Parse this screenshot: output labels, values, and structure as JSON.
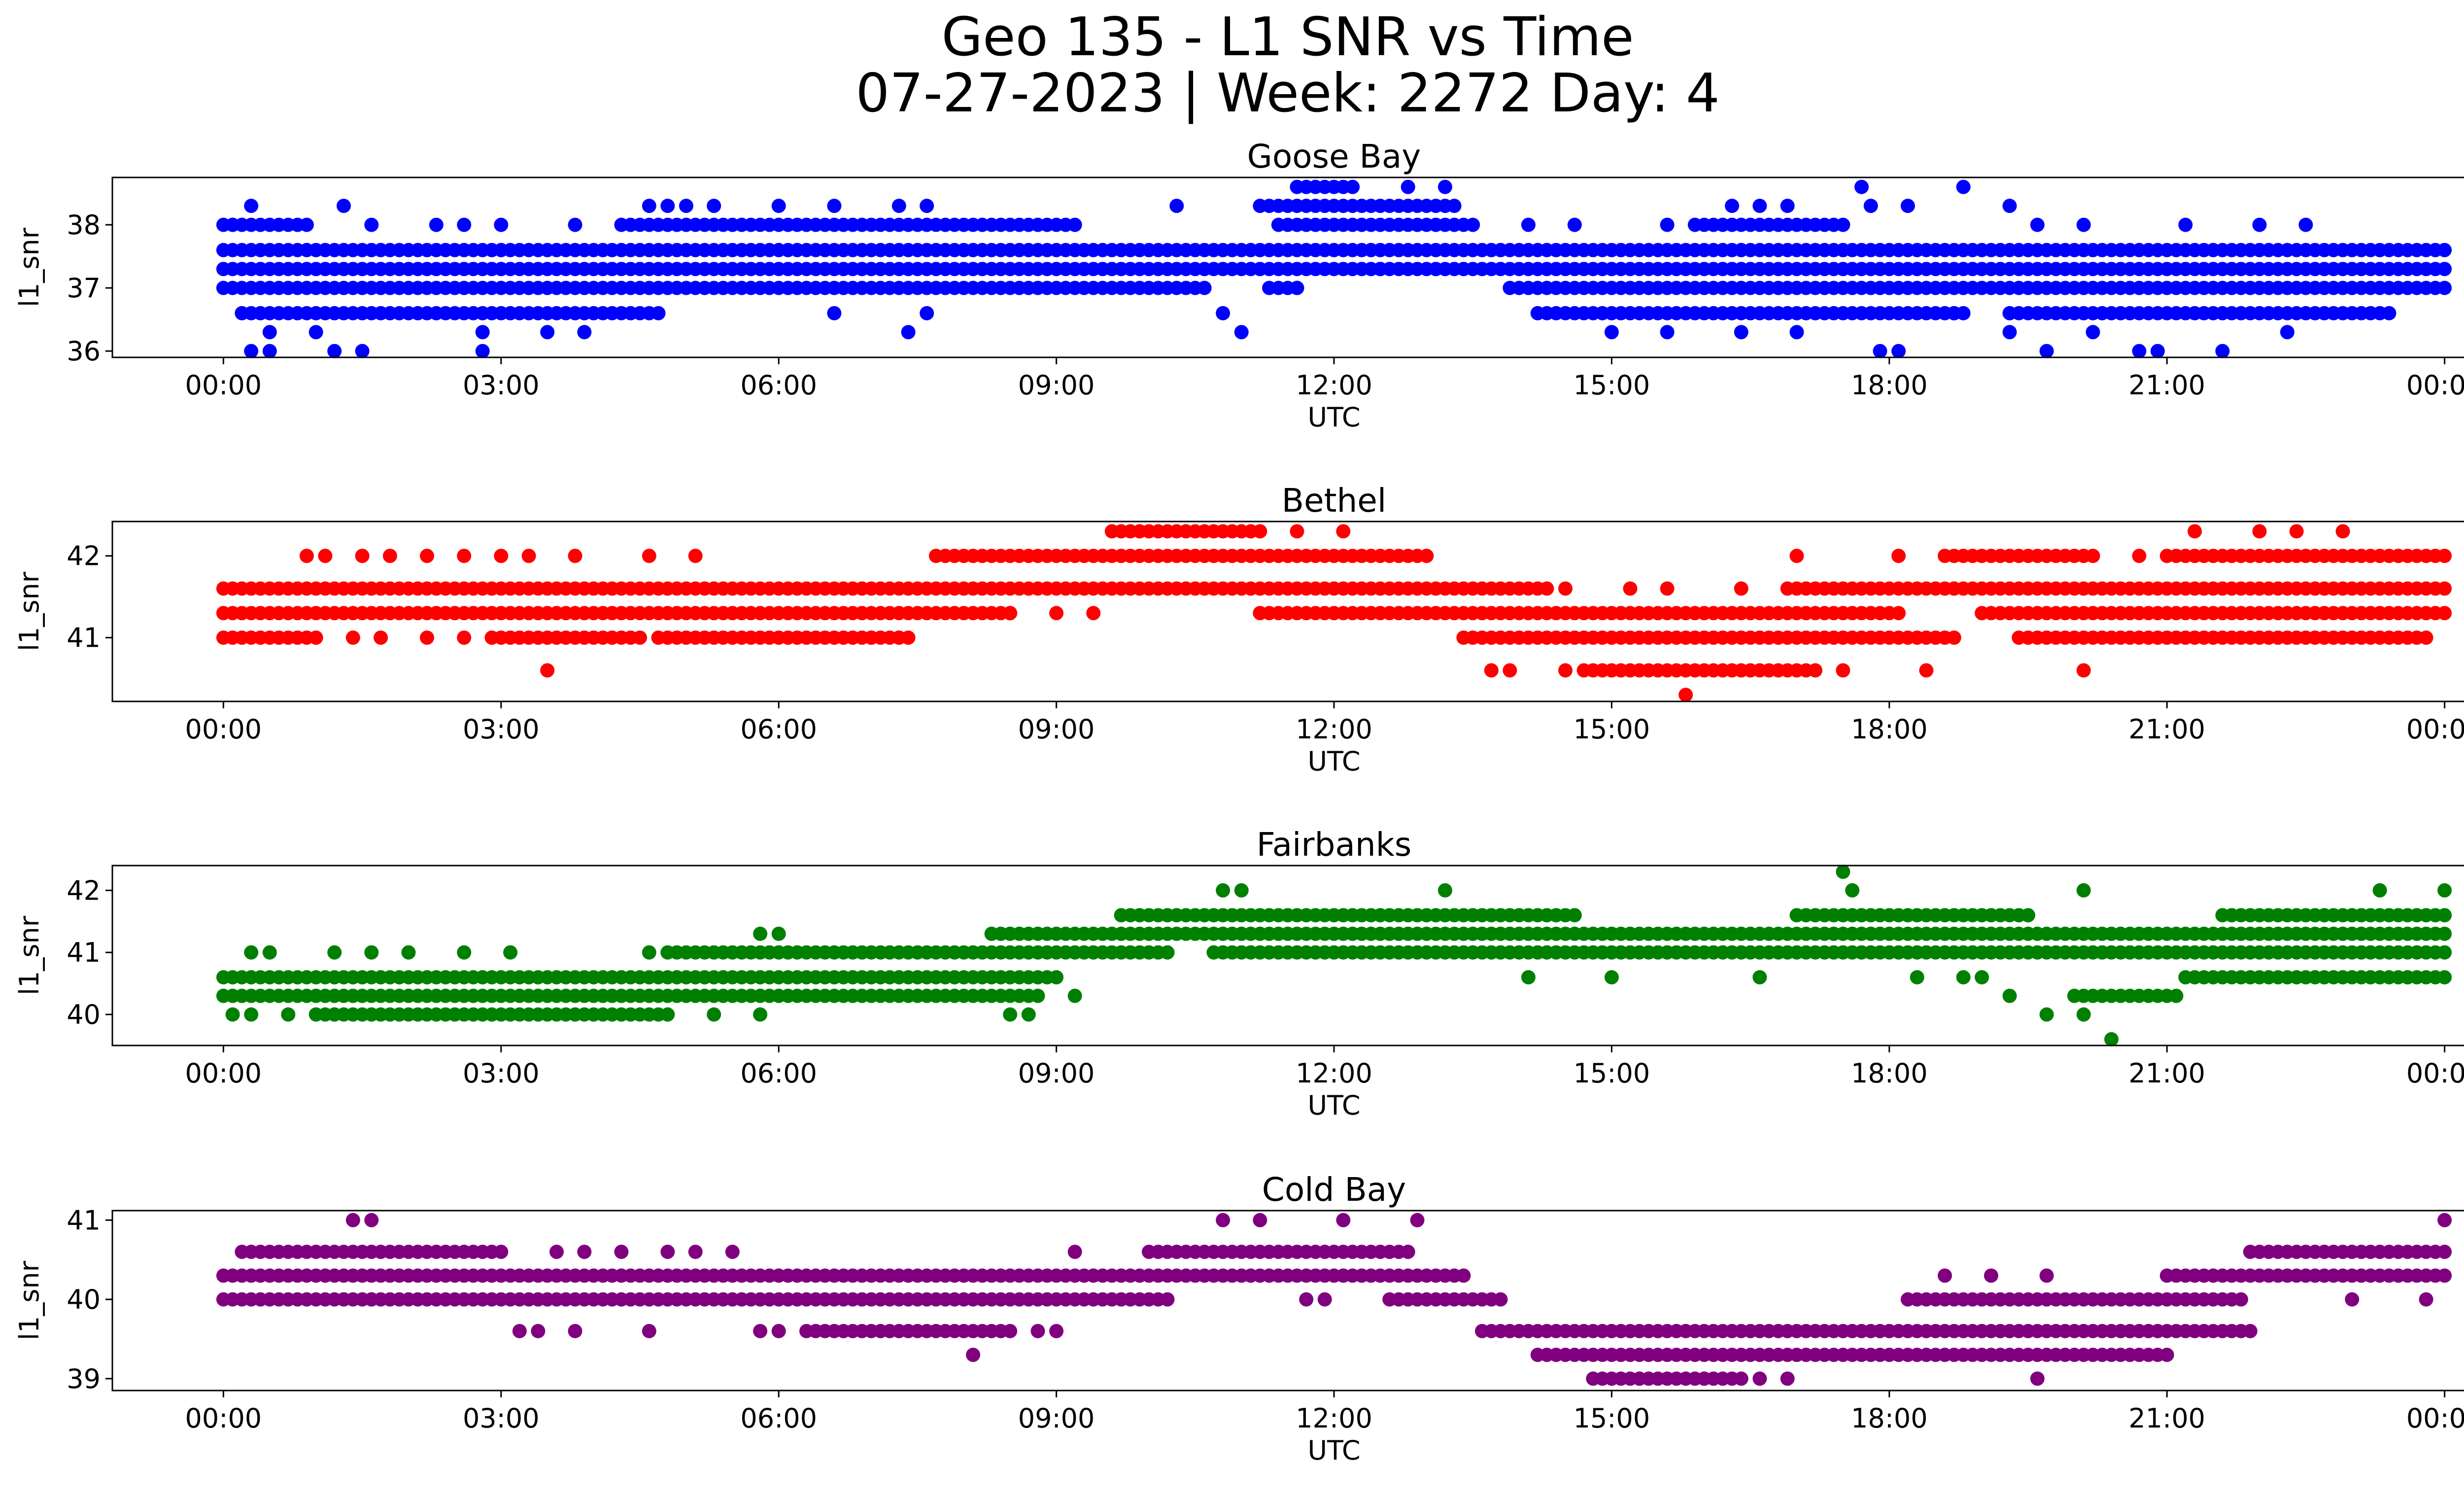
{
  "figure": {
    "title_line1": "Geo 135 - L1 SNR vs Time",
    "title_line2": "07-27-2023 | Week: 2272 Day: 4"
  },
  "chart_data": [
    {
      "type": "scatter",
      "title": "Goose Bay",
      "xlabel": "UTC",
      "ylabel": "l1_snr",
      "color": "#0000ff",
      "xlim_hours": [
        -1.2,
        25.2
      ],
      "ylim": [
        35.9,
        38.75
      ],
      "x_ticks": [
        "00:00",
        "03:00",
        "06:00",
        "09:00",
        "12:00",
        "15:00",
        "18:00",
        "21:00",
        "00:00"
      ],
      "y_ticks": [
        36,
        37,
        38
      ],
      "levels": [
        {
          "y": 37.6,
          "ranges": [
            [
              0,
              24
            ]
          ]
        },
        {
          "y": 37.3,
          "ranges": [
            [
              0,
              24
            ]
          ]
        },
        {
          "y": 37.0,
          "ranges": [
            [
              0,
              10.6
            ],
            [
              11.3,
              11.6
            ],
            [
              13.9,
              24
            ]
          ]
        },
        {
          "y": 38.0,
          "ranges": [
            [
              0.0,
              0.9
            ],
            [
              4.3,
              9.2
            ],
            [
              11.4,
              13.5
            ],
            [
              15.9,
              17.5
            ]
          ]
        },
        {
          "y": 38.3,
          "ranges": [
            [
              11.2,
              13.3
            ]
          ]
        },
        {
          "y": 36.6,
          "ranges": [
            [
              0.2,
              4.7
            ],
            [
              14.2,
              18.8
            ],
            [
              19.3,
              23.4
            ]
          ]
        },
        {
          "y": 38.6,
          "ranges": [
            [
              11.6,
              12.2
            ]
          ]
        }
      ],
      "points": [
        [
          0.1,
          38.0
        ],
        [
          0.3,
          38.3
        ],
        [
          1.3,
          38.3
        ],
        [
          1.6,
          38.0
        ],
        [
          2.3,
          38.0
        ],
        [
          2.6,
          38.0
        ],
        [
          3.0,
          38.0
        ],
        [
          3.8,
          38.0
        ],
        [
          4.6,
          38.3
        ],
        [
          4.8,
          38.3
        ],
        [
          5.0,
          38.3
        ],
        [
          5.3,
          38.3
        ],
        [
          6.0,
          38.3
        ],
        [
          6.6,
          38.3
        ],
        [
          7.3,
          38.3
        ],
        [
          7.6,
          38.3
        ],
        [
          10.3,
          38.3
        ],
        [
          12.8,
          38.6
        ],
        [
          13.2,
          38.6
        ],
        [
          14.1,
          38.0
        ],
        [
          14.6,
          38.0
        ],
        [
          15.6,
          38.0
        ],
        [
          16.3,
          38.3
        ],
        [
          16.6,
          38.3
        ],
        [
          16.9,
          38.3
        ],
        [
          17.7,
          38.6
        ],
        [
          17.8,
          38.3
        ],
        [
          18.2,
          38.3
        ],
        [
          18.8,
          38.6
        ],
        [
          19.3,
          38.3
        ],
        [
          19.6,
          38.0
        ],
        [
          20.1,
          38.0
        ],
        [
          21.2,
          38.0
        ],
        [
          22.0,
          38.0
        ],
        [
          22.5,
          38.0
        ],
        [
          0.3,
          36.0
        ],
        [
          0.5,
          36.0
        ],
        [
          1.2,
          36.0
        ],
        [
          1.5,
          36.0
        ],
        [
          2.8,
          36.0
        ],
        [
          0.5,
          36.3
        ],
        [
          1.0,
          36.3
        ],
        [
          2.8,
          36.3
        ],
        [
          3.5,
          36.3
        ],
        [
          3.9,
          36.3
        ],
        [
          7.4,
          36.3
        ],
        [
          11.0,
          36.3
        ],
        [
          15.6,
          36.3
        ],
        [
          16.4,
          36.3
        ],
        [
          17.0,
          36.3
        ],
        [
          17.9,
          36.0
        ],
        [
          18.1,
          36.0
        ],
        [
          19.3,
          36.3
        ],
        [
          19.7,
          36.0
        ],
        [
          20.2,
          36.3
        ],
        [
          20.7,
          36.0
        ],
        [
          20.9,
          36.0
        ],
        [
          21.6,
          36.0
        ],
        [
          22.3,
          36.3
        ],
        [
          6.6,
          36.6
        ],
        [
          7.6,
          36.6
        ],
        [
          10.8,
          36.6
        ],
        [
          11.6,
          37.0
        ],
        [
          12.5,
          37.3
        ],
        [
          13.1,
          37.3
        ],
        [
          13.4,
          37.3
        ],
        [
          18.7,
          36.6
        ],
        [
          15.0,
          36.3
        ]
      ]
    },
    {
      "type": "scatter",
      "title": "Bethel",
      "xlabel": "UTC",
      "ylabel": "l1_snr",
      "color": "#ff0000",
      "xlim_hours": [
        -1.2,
        25.2
      ],
      "ylim": [
        40.22,
        42.42
      ],
      "x_ticks": [
        "00:00",
        "03:00",
        "06:00",
        "09:00",
        "12:00",
        "15:00",
        "18:00",
        "21:00",
        "00:00"
      ],
      "y_ticks": [
        41,
        42
      ],
      "levels": [
        {
          "y": 41.6,
          "ranges": [
            [
              0,
              14.3
            ],
            [
              17.0,
              24
            ]
          ]
        },
        {
          "y": 41.3,
          "ranges": [
            [
              0,
              8.5
            ],
            [
              11.2,
              18.1
            ],
            [
              19.0,
              24
            ]
          ]
        },
        {
          "y": 41.0,
          "ranges": [
            [
              0,
              1.0
            ],
            [
              2.9,
              4.5
            ],
            [
              4.7,
              7.4
            ],
            [
              13.4,
              18.7
            ],
            [
              19.4,
              23.8
            ]
          ]
        },
        {
          "y": 42.0,
          "ranges": [
            [
              7.7,
              13.0
            ],
            [
              18.6,
              20.2
            ],
            [
              21.0,
              24
            ]
          ]
        },
        {
          "y": 42.3,
          "ranges": [
            [
              9.6,
              11.2
            ]
          ]
        },
        {
          "y": 40.6,
          "ranges": [
            [
              14.7,
              17.2
            ]
          ]
        }
      ],
      "points": [
        [
          0.9,
          42.0
        ],
        [
          1.1,
          42.0
        ],
        [
          1.5,
          42.0
        ],
        [
          1.8,
          42.0
        ],
        [
          2.2,
          42.0
        ],
        [
          2.6,
          42.0
        ],
        [
          3.0,
          42.0
        ],
        [
          3.3,
          42.0
        ],
        [
          3.8,
          42.0
        ],
        [
          4.6,
          42.0
        ],
        [
          5.1,
          42.0
        ],
        [
          11.6,
          42.3
        ],
        [
          12.1,
          42.3
        ],
        [
          17.0,
          42.0
        ],
        [
          18.1,
          42.0
        ],
        [
          20.7,
          42.0
        ],
        [
          21.3,
          42.3
        ],
        [
          22.0,
          42.3
        ],
        [
          22.4,
          42.3
        ],
        [
          22.9,
          42.3
        ],
        [
          23.5,
          42.0
        ],
        [
          1.4,
          41.0
        ],
        [
          1.7,
          41.0
        ],
        [
          2.2,
          41.0
        ],
        [
          2.6,
          41.0
        ],
        [
          7.0,
          41.0
        ],
        [
          7.3,
          41.0
        ],
        [
          3.5,
          40.6
        ],
        [
          13.7,
          40.6
        ],
        [
          13.9,
          40.6
        ],
        [
          14.5,
          40.6
        ],
        [
          17.5,
          40.6
        ],
        [
          18.4,
          40.6
        ],
        [
          20.1,
          40.6
        ],
        [
          15.8,
          40.3
        ],
        [
          8.5,
          41.3
        ],
        [
          9.0,
          41.3
        ],
        [
          9.4,
          41.3
        ],
        [
          14.5,
          41.6
        ],
        [
          15.2,
          41.6
        ],
        [
          15.6,
          41.6
        ],
        [
          16.4,
          41.6
        ],
        [
          16.9,
          41.6
        ],
        [
          18.7,
          41.6
        ]
      ]
    },
    {
      "type": "scatter",
      "title": "Fairbanks",
      "xlabel": "UTC",
      "ylabel": "l1_snr",
      "color": "#008000",
      "xlim_hours": [
        -1.2,
        25.2
      ],
      "ylim": [
        39.5,
        42.4
      ],
      "x_ticks": [
        "00:00",
        "03:00",
        "06:00",
        "09:00",
        "12:00",
        "15:00",
        "18:00",
        "21:00",
        "00:00"
      ],
      "y_ticks": [
        40,
        41,
        42
      ],
      "levels": [
        {
          "y": 40.6,
          "ranges": [
            [
              0,
              9.0
            ],
            [
              21.2,
              24
            ]
          ]
        },
        {
          "y": 40.3,
          "ranges": [
            [
              0,
              8.8
            ],
            [
              20.0,
              21.1
            ]
          ]
        },
        {
          "y": 41.0,
          "ranges": [
            [
              4.8,
              10.2
            ],
            [
              10.7,
              24
            ]
          ]
        },
        {
          "y": 41.3,
          "ranges": [
            [
              8.3,
              24
            ]
          ]
        },
        {
          "y": 41.6,
          "ranges": [
            [
              9.7,
              14.6
            ],
            [
              17.0,
              19.5
            ],
            [
              21.6,
              24
            ]
          ]
        },
        {
          "y": 40.0,
          "ranges": [
            [
              1.0,
              4.8
            ]
          ]
        }
      ],
      "points": [
        [
          0.3,
          41.0
        ],
        [
          0.5,
          41.0
        ],
        [
          1.2,
          41.0
        ],
        [
          1.6,
          41.0
        ],
        [
          2.0,
          41.0
        ],
        [
          2.6,
          41.0
        ],
        [
          3.1,
          41.0
        ],
        [
          4.6,
          41.0
        ],
        [
          5.8,
          41.3
        ],
        [
          6.0,
          41.3
        ],
        [
          10.8,
          42.0
        ],
        [
          11.0,
          42.0
        ],
        [
          13.2,
          42.0
        ],
        [
          17.5,
          42.3
        ],
        [
          17.6,
          42.0
        ],
        [
          20.1,
          42.0
        ],
        [
          23.3,
          42.0
        ],
        [
          24.0,
          42.0
        ],
        [
          0.1,
          40.0
        ],
        [
          0.3,
          40.0
        ],
        [
          0.7,
          40.0
        ],
        [
          1.2,
          40.0
        ],
        [
          5.3,
          40.0
        ],
        [
          5.8,
          40.0
        ],
        [
          8.5,
          40.0
        ],
        [
          8.7,
          40.0
        ],
        [
          19.7,
          40.0
        ],
        [
          20.1,
          40.0
        ],
        [
          20.4,
          39.6
        ],
        [
          19.3,
          40.3
        ],
        [
          9.2,
          40.3
        ],
        [
          14.1,
          40.6
        ],
        [
          15.0,
          40.6
        ],
        [
          16.6,
          40.6
        ],
        [
          18.3,
          40.6
        ],
        [
          18.8,
          40.6
        ],
        [
          19.0,
          40.6
        ],
        [
          23.6,
          40.6
        ]
      ]
    },
    {
      "type": "scatter",
      "title": "Cold Bay",
      "xlabel": "UTC",
      "ylabel": "l1_snr",
      "color": "#800080",
      "xlim_hours": [
        -1.2,
        25.2
      ],
      "ylim": [
        38.85,
        41.12
      ],
      "x_ticks": [
        "00:00",
        "03:00",
        "06:00",
        "09:00",
        "12:00",
        "15:00",
        "18:00",
        "21:00",
        "00:00"
      ],
      "y_ticks": [
        39,
        40,
        41
      ],
      "levels": [
        {
          "y": 40.3,
          "ranges": [
            [
              0,
              13.4
            ],
            [
              21.0,
              24
            ]
          ]
        },
        {
          "y": 40.0,
          "ranges": [
            [
              0,
              10.2
            ],
            [
              12.6,
              13.8
            ],
            [
              18.2,
              21.8
            ]
          ]
        },
        {
          "y": 40.6,
          "ranges": [
            [
              0.2,
              2.9
            ],
            [
              10.0,
              12.8
            ],
            [
              21.9,
              24
            ]
          ]
        },
        {
          "y": 39.6,
          "ranges": [
            [
              6.3,
              8.5
            ],
            [
              13.6,
              21.9
            ]
          ]
        },
        {
          "y": 39.3,
          "ranges": [
            [
              14.2,
              21.0
            ]
          ]
        },
        {
          "y": 39.0,
          "ranges": [
            [
              14.8,
              16.4
            ]
          ]
        }
      ],
      "points": [
        [
          1.4,
          41.0
        ],
        [
          1.6,
          41.0
        ],
        [
          10.8,
          41.0
        ],
        [
          11.2,
          41.0
        ],
        [
          12.1,
          41.0
        ],
        [
          12.9,
          41.0
        ],
        [
          24.0,
          41.0
        ],
        [
          0.9,
          40.0
        ],
        [
          1.3,
          40.0
        ],
        [
          1.6,
          40.0
        ],
        [
          23.0,
          40.0
        ],
        [
          23.8,
          40.0
        ],
        [
          3.2,
          39.6
        ],
        [
          3.4,
          39.6
        ],
        [
          3.8,
          39.6
        ],
        [
          4.6,
          39.6
        ],
        [
          5.8,
          39.6
        ],
        [
          6.0,
          39.6
        ],
        [
          8.8,
          39.6
        ],
        [
          9.0,
          39.6
        ],
        [
          8.1,
          39.3
        ],
        [
          3.0,
          40.6
        ],
        [
          3.6,
          40.6
        ],
        [
          3.9,
          40.6
        ],
        [
          4.3,
          40.6
        ],
        [
          4.8,
          40.6
        ],
        [
          5.1,
          40.6
        ],
        [
          5.5,
          40.6
        ],
        [
          9.2,
          40.6
        ],
        [
          11.7,
          40.0
        ],
        [
          11.9,
          40.0
        ],
        [
          16.0,
          39.0
        ],
        [
          16.6,
          39.0
        ],
        [
          16.9,
          39.0
        ],
        [
          19.6,
          39.0
        ],
        [
          18.6,
          40.3
        ],
        [
          19.1,
          40.3
        ],
        [
          19.7,
          40.3
        ],
        [
          15.3,
          39.0
        ]
      ]
    }
  ]
}
